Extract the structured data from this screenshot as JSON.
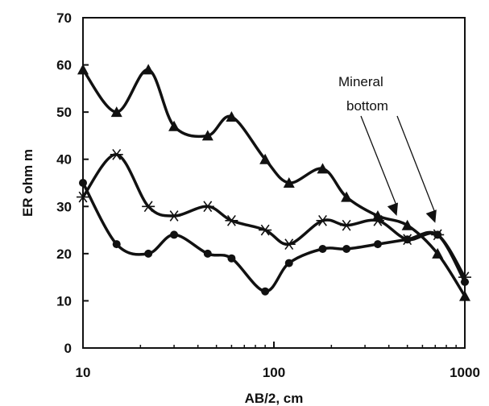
{
  "chart_data": {
    "type": "line",
    "title": "",
    "xlabel": "AB/2, cm",
    "ylabel": "ER ohm m",
    "xscale": "log",
    "xlim": [
      10,
      1000
    ],
    "ylim": [
      0,
      70
    ],
    "xticks": [
      10,
      100,
      1000
    ],
    "xtick_labels": [
      "10",
      "100",
      "1000"
    ],
    "yticks": [
      0,
      10,
      20,
      30,
      40,
      50,
      60,
      70
    ],
    "ytick_labels": [
      "0",
      "10",
      "20",
      "30",
      "40",
      "50",
      "60",
      "70"
    ],
    "grid": false,
    "legend": "none",
    "series": [
      {
        "marker": "triangle",
        "color": "#111111",
        "points": [
          [
            10,
            59
          ],
          [
            15,
            50
          ],
          [
            22,
            59
          ],
          [
            30,
            47
          ],
          [
            45,
            45
          ],
          [
            60,
            49
          ],
          [
            90,
            40
          ],
          [
            120,
            35
          ],
          [
            180,
            38
          ],
          [
            240,
            32
          ],
          [
            350,
            28
          ],
          [
            500,
            26
          ],
          [
            720,
            20
          ],
          [
            1000,
            11
          ]
        ]
      },
      {
        "marker": "star",
        "color": "#111111",
        "points": [
          [
            10,
            32
          ],
          [
            15,
            41
          ],
          [
            22,
            30
          ],
          [
            30,
            28
          ],
          [
            45,
            30
          ],
          [
            60,
            27
          ],
          [
            90,
            25
          ],
          [
            120,
            22
          ],
          [
            180,
            27
          ],
          [
            240,
            26
          ],
          [
            350,
            27
          ],
          [
            500,
            23
          ],
          [
            720,
            24
          ],
          [
            1000,
            15
          ]
        ]
      },
      {
        "marker": "circle",
        "color": "#111111",
        "points": [
          [
            10,
            35
          ],
          [
            15,
            22
          ],
          [
            22,
            20
          ],
          [
            30,
            24
          ],
          [
            45,
            20
          ],
          [
            60,
            19
          ],
          [
            90,
            12
          ],
          [
            120,
            18
          ],
          [
            180,
            21
          ],
          [
            240,
            21
          ],
          [
            350,
            22
          ],
          [
            500,
            23
          ],
          [
            720,
            24
          ],
          [
            1000,
            14
          ]
        ]
      }
    ],
    "annotations": [
      {
        "text_lines": [
          "Mineral",
          "bottom"
        ],
        "arrows_to": [
          [
            440,
            28
          ],
          [
            700,
            26.5
          ]
        ]
      }
    ]
  }
}
